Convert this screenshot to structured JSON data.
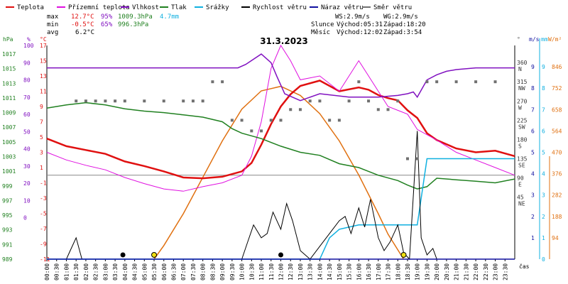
{
  "legend": [
    {
      "label": "Teplota",
      "color": "#e01010"
    },
    {
      "label": "Přízemní teplota",
      "color": "#e010e0"
    },
    {
      "label": "Vlhkost",
      "color": "#8010c0"
    },
    {
      "label": "Tlak",
      "color": "#208020"
    },
    {
      "label": "Srážky",
      "color": "#10b0e0"
    },
    {
      "label": "Rychlost větru",
      "color": "#000000"
    },
    {
      "label": "Náraz větru",
      "color": "#1010a0"
    },
    {
      "label": "Směr větru",
      "color": "#707070"
    }
  ],
  "stats": {
    "max_label": "max",
    "min_label": "min",
    "avg_label": "avg",
    "max_temp": "12.7°C",
    "max_hum": "95%",
    "max_press": "1009.3hPa",
    "rain": "4.7mm",
    "min_temp": "-0.5°C",
    "min_hum": "65%",
    "min_press": "996.3hPa",
    "avg_temp": "6.2°C"
  },
  "info": {
    "ws": "WS:2.9m/s",
    "wg": "WG:2.9m/s",
    "sun_label": "Slunce",
    "sunrise": "Východ:05:31",
    "sunset": "Západ:18:20",
    "moon_label": "Měsíc",
    "moonrise": "Východ:12:02",
    "moonset": "Západ:3:54"
  },
  "axis_units": {
    "hpa": "hPa",
    "pct": "%",
    "deg_c": "°C",
    "deg": "°",
    "ms": "m/s",
    "mm": "mm",
    "wm2": "W/m²",
    "cas": "čas"
  },
  "chart_data": {
    "type": "line",
    "title": "31.3.2023",
    "xlabel": "čas",
    "x_ticks": [
      "00:00",
      "00:30",
      "01:00",
      "01:30",
      "02:00",
      "02:30",
      "03:00",
      "03:30",
      "04:00",
      "04:30",
      "05:00",
      "05:30",
      "06:00",
      "06:30",
      "07:00",
      "07:30",
      "08:00",
      "08:30",
      "09:00",
      "09:30",
      "10:00",
      "10:30",
      "11:00",
      "11:30",
      "12:00",
      "12:30",
      "13:00",
      "13:30",
      "14:00",
      "14:30",
      "15:00",
      "15:30",
      "16:00",
      "16:30",
      "17:00",
      "17:30",
      "18:00",
      "18:30",
      "19:00",
      "19:30",
      "20:00",
      "20:30",
      "21:00",
      "21:30",
      "22:00",
      "22:30",
      "23:00",
      "23:30"
    ],
    "axes": {
      "pressure_hpa": {
        "ticks": [
          "1017",
          "1015",
          "1013",
          "1011",
          "1009",
          "1007",
          "1005",
          "1003",
          "1001",
          "999",
          "997",
          "995",
          "993",
          "991",
          "989"
        ],
        "range": [
          989,
          1017
        ]
      },
      "humidity_pct": {
        "ticks": [
          "100",
          "90",
          "80",
          "70",
          "60",
          "50",
          "40",
          "30",
          "20",
          "10",
          "0"
        ],
        "range": [
          0,
          100
        ]
      },
      "temperature_c": {
        "ticks": [
          "17",
          "15",
          "13",
          "11",
          "9",
          "7",
          "5",
          "3",
          "1",
          "-1",
          "-3",
          "-5",
          "-7",
          "-9",
          "-11"
        ],
        "range": [
          -11,
          17
        ]
      },
      "wind_dir_deg": {
        "ticks": [
          "360",
          "315",
          "270",
          "225",
          "180",
          "135",
          "90",
          "45"
        ],
        "compass": [
          "N",
          "NW",
          "W",
          "SW",
          "S",
          "SE",
          "E",
          "NE"
        ],
        "range": [
          0,
          360
        ]
      },
      "wind_ms": {
        "ticks": [
          "9",
          "8",
          "7",
          "6",
          "5",
          "4",
          "3",
          "2",
          "1"
        ],
        "range": [
          0,
          10
        ]
      },
      "rain_mm": {
        "ticks": [
          "9",
          "8",
          "7",
          "6",
          "5",
          "4",
          "3",
          "2",
          "1",
          "0"
        ],
        "range": [
          0,
          10
        ]
      },
      "solar_wm2": {
        "ticks": [
          "846",
          "752",
          "658",
          "564",
          "470",
          "376",
          "282",
          "188",
          "94"
        ],
        "range": [
          0,
          940
        ]
      }
    },
    "series": [
      {
        "name": "Teplota",
        "axis": "temperature_c",
        "color": "#e01010",
        "x": [
          0,
          1,
          2,
          3,
          4,
          5,
          6,
          7,
          8,
          9,
          10,
          10.5,
          11,
          11.5,
          12,
          12.5,
          13,
          14,
          15,
          16,
          16.5,
          17,
          17.5,
          18,
          18.5,
          19,
          19.5,
          20,
          21,
          22,
          23,
          24
        ],
        "y": [
          4.8,
          3.8,
          3.3,
          2.8,
          1.8,
          1.2,
          0.5,
          -0.3,
          -0.4,
          -0.2,
          0.5,
          1.6,
          4,
          6.7,
          9,
          10.6,
          11.7,
          12.4,
          11,
          11.5,
          11.2,
          10.5,
          10.1,
          9.8,
          8.5,
          7.5,
          5.5,
          4.6,
          3.5,
          3,
          3.2,
          2.5
        ]
      },
      {
        "name": "Přízemní teplota",
        "axis": "temperature_c",
        "color": "#e010e0",
        "x": [
          0,
          1,
          2,
          3,
          4,
          5,
          6,
          7,
          8,
          9,
          10,
          10.5,
          11,
          11.5,
          12,
          12.5,
          13,
          14,
          15,
          16,
          16.5,
          17,
          17.5,
          18,
          18.5,
          19,
          20,
          21,
          22,
          23,
          24
        ],
        "y": [
          3,
          2,
          1.3,
          0.7,
          -0.3,
          -1.1,
          -1.8,
          -2.1,
          -1.5,
          -1,
          0,
          2.5,
          7,
          14,
          17,
          15,
          12.5,
          13,
          11,
          15,
          13,
          11,
          9,
          8.5,
          8,
          6,
          4.6,
          3,
          2,
          1,
          0
        ]
      },
      {
        "name": "Vlhkost",
        "axis": "humidity_pct",
        "color": "#8010c0",
        "x": [
          0,
          4,
          8,
          9.8,
          10.2,
          11,
          11.5,
          11.8,
          12.2,
          13,
          14,
          15.5,
          16,
          17,
          18,
          18.5,
          18.8,
          19,
          19.5,
          20,
          20.5,
          21,
          22,
          23,
          24
        ],
        "y": [
          87,
          87,
          87,
          87,
          89,
          95,
          90,
          82,
          72,
          68,
          72,
          70,
          70,
          70,
          71,
          72,
          73,
          70,
          80,
          83,
          85,
          86,
          87,
          87,
          87
        ]
      },
      {
        "name": "Tlak",
        "axis": "pressure_hpa",
        "color": "#208020",
        "x": [
          0,
          1,
          2,
          3,
          4,
          5,
          6,
          7,
          8,
          9,
          9.5,
          10,
          11,
          12,
          13,
          14,
          15,
          16,
          17,
          18,
          18.5,
          19,
          19.5,
          20,
          21,
          22,
          23,
          24
        ],
        "y": [
          1008.8,
          1009.2,
          1009.5,
          1009.2,
          1008.7,
          1008.4,
          1008.2,
          1007.9,
          1007.6,
          1007,
          1006.1,
          1005.5,
          1004.8,
          1003.8,
          1003,
          1002.6,
          1001.5,
          1001,
          1000,
          999.3,
          998.7,
          998.2,
          998.5,
          999.6,
          999.4,
          999.2,
          999,
          999.5
        ]
      },
      {
        "name": "Srážky",
        "axis": "rain_mm",
        "color": "#10b0e0",
        "x": [
          0,
          14,
          14.5,
          15,
          16,
          17,
          18,
          18.5,
          19,
          19.5,
          20,
          21,
          22,
          23,
          24
        ],
        "y": [
          0,
          0,
          1,
          1.4,
          1.6,
          1.6,
          1.6,
          1.6,
          1.6,
          4.7,
          4.7,
          4.7,
          4.7,
          4.7,
          4.7
        ]
      },
      {
        "name": "Rychlost větru",
        "axis": "wind_ms",
        "color": "#000000",
        "x": [
          0,
          1,
          1.2,
          1.5,
          1.8,
          2,
          10,
          10.3,
          10.6,
          11,
          11.3,
          11.6,
          12,
          12.3,
          12.6,
          13,
          13.5,
          14,
          14.5,
          15,
          15.3,
          15.6,
          16,
          16.3,
          16.6,
          17,
          17.3,
          17.6,
          18,
          18.3,
          18.6,
          19,
          19.2,
          19.5,
          19.8,
          20,
          24
        ],
        "y": [
          0,
          0,
          0.4,
          1,
          0,
          0,
          0,
          0.8,
          1.6,
          1,
          1.2,
          2.2,
          1.4,
          2.6,
          1.8,
          0.4,
          0,
          0.6,
          1.2,
          1.8,
          2,
          1.2,
          2.4,
          1.5,
          2.8,
          1,
          0.4,
          0.8,
          1.6,
          0.3,
          0,
          6,
          1,
          0.2,
          0.5,
          0,
          0
        ]
      },
      {
        "name": "Náraz větru",
        "axis": "wind_ms",
        "color": "#1010a0",
        "x": [
          0,
          24
        ],
        "y": [
          0,
          0
        ]
      },
      {
        "name": "Směr větru",
        "axis": "wind_dir_deg",
        "color": "#707070",
        "style": "points",
        "x": [
          1.5,
          2,
          2.5,
          3,
          3.5,
          4,
          5,
          6,
          7,
          7.5,
          8,
          8.5,
          9,
          9.5,
          10,
          10.5,
          11,
          11.5,
          12,
          12.5,
          13,
          13.5,
          14,
          14.5,
          15,
          15.5,
          16,
          16.5,
          17,
          17.5,
          18,
          18.5,
          19,
          19.5,
          20,
          21,
          22,
          23
        ],
        "y": [
          270,
          270,
          270,
          270,
          270,
          270,
          270,
          270,
          270,
          270,
          270,
          315,
          315,
          225,
          225,
          200,
          200,
          225,
          225,
          250,
          250,
          270,
          270,
          225,
          225,
          270,
          315,
          270,
          250,
          250,
          270,
          135,
          135,
          315,
          315,
          315,
          315,
          315
        ]
      }
    ],
    "solar": {
      "name": "Sluneční záření",
      "axis": "solar_wm2",
      "color": "#e07010",
      "x": [
        5.5,
        6,
        7,
        8,
        9,
        10,
        11,
        12,
        13,
        14,
        15,
        16,
        17,
        17.5,
        18.3
      ],
      "y": [
        0,
        60,
        200,
        360,
        520,
        660,
        740,
        760,
        720,
        640,
        520,
        370,
        200,
        110,
        0
      ]
    },
    "markers": [
      {
        "type": "sun",
        "x": 5.5,
        "label": ""
      },
      {
        "type": "moon",
        "x": 3.9,
        "label": ""
      },
      {
        "type": "moon",
        "x": 12.0,
        "label": ""
      },
      {
        "type": "sun",
        "x": 18.3,
        "label": ""
      }
    ],
    "grid": false
  }
}
